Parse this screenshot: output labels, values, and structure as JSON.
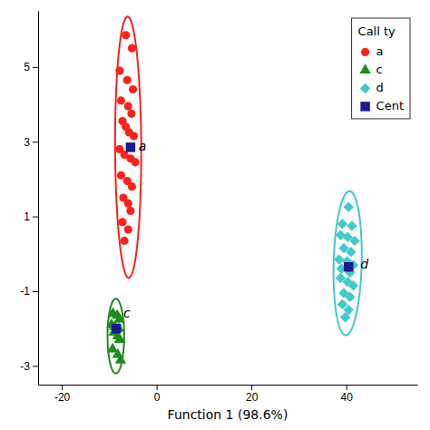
{
  "chart_data": {
    "type": "scatter",
    "xlabel": "Function 1 (98.6%)",
    "xlim": [
      -25,
      55
    ],
    "ylim": [
      -3.5,
      6.5
    ],
    "xticks": [
      -20,
      0,
      20,
      40
    ],
    "yticks": [
      -3,
      -1,
      1,
      3,
      5
    ],
    "legend": "upper right",
    "legend_title": "Call ty",
    "series": [
      {
        "name": "a",
        "color": "#F8231A",
        "marker": "circle",
        "x": [
          -6.5,
          -5.2,
          -7.8,
          -6.2,
          -5.0,
          -7.5,
          -6.0,
          -5.3,
          -7.2,
          -6.5,
          -5.8,
          -4.8,
          -7.8,
          -6.8,
          -5.5,
          -4.5,
          -7.5,
          -6.2,
          -5.2,
          -7.0,
          -6.0,
          -5.5,
          -7.2,
          -6.0,
          -6.8
        ],
        "y": [
          5.85,
          5.5,
          4.9,
          4.65,
          4.4,
          4.1,
          3.95,
          3.75,
          3.55,
          3.4,
          3.25,
          3.15,
          2.8,
          2.65,
          2.55,
          2.45,
          2.1,
          1.95,
          1.8,
          1.5,
          1.35,
          1.15,
          0.85,
          0.65,
          0.35
        ],
        "ellipse": {
          "center_x": -6.0,
          "center_y": 2.85,
          "width": 5.5,
          "height": 7.0,
          "angle": 5
        }
      },
      {
        "name": "c",
        "color": "#1E8B1E",
        "marker": "triangle",
        "x": [
          -9.2,
          -8.3,
          -7.8,
          -9.5,
          -8.8,
          -8.0,
          -9.0,
          -8.2,
          -7.8,
          -9.3,
          -8.2,
          -7.6
        ],
        "y": [
          -1.6,
          -1.65,
          -1.75,
          -1.9,
          -1.95,
          -2.0,
          -2.1,
          -2.2,
          -2.3,
          -2.55,
          -2.7,
          -2.85
        ],
        "ellipse": {
          "center_x": -8.6,
          "center_y": -2.2,
          "width": 3.5,
          "height": 2.0,
          "angle": 0
        }
      },
      {
        "name": "d",
        "color": "#45C8C8",
        "marker": "diamond",
        "x": [
          40.5,
          39.2,
          41.2,
          38.8,
          40.3,
          41.8,
          39.5,
          41.0,
          38.5,
          40.2,
          41.5,
          39.0,
          40.8,
          38.8,
          40.3,
          41.5,
          39.5,
          40.8,
          39.2,
          40.5,
          39.8
        ],
        "y": [
          1.25,
          0.8,
          0.75,
          0.5,
          0.45,
          0.35,
          0.15,
          0.05,
          -0.15,
          -0.2,
          -0.3,
          -0.4,
          -0.5,
          -0.65,
          -0.75,
          -0.85,
          -1.05,
          -1.15,
          -1.35,
          -1.5,
          -1.7
        ],
        "ellipse": {
          "center_x": 40.3,
          "center_y": -0.25,
          "width": 6.0,
          "height": 3.8,
          "angle": 8
        }
      },
      {
        "name": "Cent",
        "color": "#1A1A8C",
        "marker": "square",
        "x": [
          -5.5,
          -8.5,
          40.5
        ],
        "y": [
          2.85,
          -2.0,
          -0.35
        ]
      }
    ],
    "annotations": [
      {
        "text": "a",
        "x": -3.8,
        "y": 2.85
      },
      {
        "text": "c",
        "x": -7.0,
        "y": -1.6
      },
      {
        "text": "d",
        "x": 43.0,
        "y": -0.3
      }
    ]
  }
}
